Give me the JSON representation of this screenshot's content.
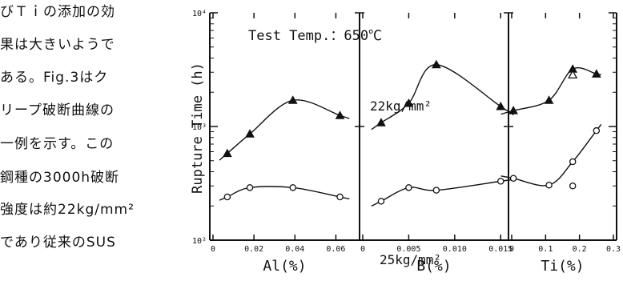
{
  "body_text": [
    "びＴｉの添加の効",
    "果は大きいようで",
    "ある。Fig.3はク",
    "リープ破断曲線の",
    "一例を示す。この",
    "鋼種の3000h破断",
    "強度は約22kg/mm²",
    "であり従来のSUS"
  ],
  "chart_data": {
    "type": "line",
    "title": "Test Temp.：650℃",
    "ylabel": "Rupture Time (h)",
    "y_scale": "log",
    "ylim": [
      100,
      10000
    ],
    "y_tick_labels": [
      "10²",
      "10³",
      "10⁴"
    ],
    "annotations": [
      "22kg/mm²",
      "25kg/mm²"
    ],
    "panels": [
      {
        "xlabel": "Al(%)",
        "xlim": [
          0,
          0.07
        ],
        "x_tick_labels": [
          "0",
          "0.02",
          "0.04",
          "0.06"
        ],
        "x_ticks": [
          0,
          0.02,
          0.04,
          0.06
        ],
        "series": [
          {
            "marker": "triangle",
            "points": [
              [
                0.007,
                580
              ],
              [
                0.018,
                860
              ],
              [
                0.039,
                1700
              ],
              [
                0.062,
                1250
              ]
            ]
          },
          {
            "marker": "circle",
            "points": [
              [
                0.007,
                240
              ],
              [
                0.018,
                290
              ],
              [
                0.039,
                290
              ],
              [
                0.062,
                240
              ]
            ]
          }
        ]
      },
      {
        "xlabel": "B(%)",
        "xlim": [
          0,
          0.0155
        ],
        "x_tick_labels": [
          "0",
          "0.005",
          "0.010",
          "0.015"
        ],
        "x_ticks": [
          0,
          0.005,
          0.01,
          0.015
        ],
        "series": [
          {
            "marker": "triangle",
            "points": [
              [
                0.002,
                1080
              ],
              [
                0.005,
                1600
              ],
              [
                0.008,
                3500
              ],
              [
                0.015,
                1500
              ]
            ]
          },
          {
            "marker": "circle",
            "points": [
              [
                0.002,
                220
              ],
              [
                0.005,
                290
              ],
              [
                0.008,
                275
              ],
              [
                0.015,
                330
              ]
            ]
          }
        ]
      },
      {
        "xlabel": "Ti(%)",
        "xlim": [
          0,
          0.3
        ],
        "x_tick_labels": [
          "0",
          "0.1",
          "0.2",
          "0.3"
        ],
        "x_ticks": [
          0,
          0.1,
          0.2,
          0.3
        ],
        "series": [
          {
            "marker": "triangle",
            "points": [
              [
                0.005,
                1380
              ],
              [
                0.11,
                1700
              ],
              [
                0.18,
                3200
              ],
              [
                0.25,
                2900
              ]
            ]
          },
          {
            "marker": "triangle-open",
            "points": [
              [
                0.18,
                2850
              ]
            ]
          },
          {
            "marker": "circle",
            "points": [
              [
                0.005,
                350
              ],
              [
                0.11,
                305
              ],
              [
                0.18,
                490
              ],
              [
                0.25,
                920
              ]
            ]
          },
          {
            "marker": "circle",
            "points": [
              [
                0.18,
                300
              ]
            ]
          }
        ]
      }
    ]
  }
}
